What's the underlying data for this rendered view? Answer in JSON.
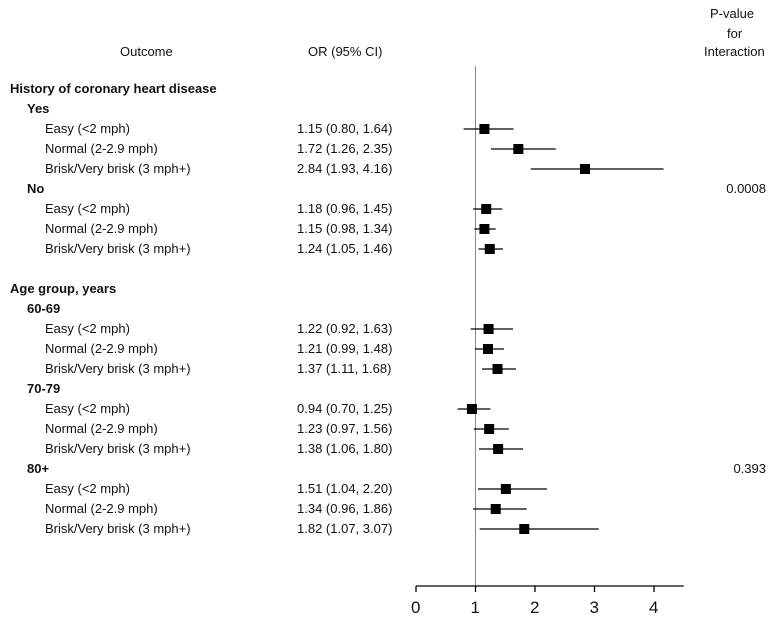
{
  "header": {
    "outcome": "Outcome",
    "or_ci": "OR (95% CI)",
    "pvalue_lines": [
      "P-value",
      "for",
      "Interaction"
    ]
  },
  "chart_data": {
    "type": "forest",
    "reference_line": 1,
    "xlim": [
      0,
      4.5
    ],
    "xticks": [
      "0",
      "1",
      "2",
      "3",
      "4"
    ],
    "groups": [
      {
        "title": "History of coronary heart disease",
        "p_value": "0.0008",
        "subgroups": [
          {
            "label": "Yes",
            "rows": [
              {
                "label": "Easy (<2 mph)",
                "ci_text": "1.15 (0.80, 1.64)",
                "or": 1.15,
                "lo": 0.8,
                "hi": 1.64
              },
              {
                "label": "Normal (2-2.9 mph)",
                "ci_text": "1.72 (1.26, 2.35)",
                "or": 1.72,
                "lo": 1.26,
                "hi": 2.35
              },
              {
                "label": "Brisk/Very brisk (3 mph+)",
                "ci_text": "2.84 (1.93, 4.16)",
                "or": 2.84,
                "lo": 1.93,
                "hi": 4.16
              }
            ]
          },
          {
            "label": "No",
            "rows": [
              {
                "label": "Easy (<2 mph)",
                "ci_text": "1.18 (0.96, 1.45)",
                "or": 1.18,
                "lo": 0.96,
                "hi": 1.45
              },
              {
                "label": "Normal (2-2.9 mph)",
                "ci_text": "1.15 (0.98, 1.34)",
                "or": 1.15,
                "lo": 0.98,
                "hi": 1.34
              },
              {
                "label": "Brisk/Very brisk (3 mph+)",
                "ci_text": "1.24 (1.05, 1.46)",
                "or": 1.24,
                "lo": 1.05,
                "hi": 1.46
              }
            ]
          }
        ]
      },
      {
        "title": "Age group, years",
        "p_value": "0.393",
        "subgroups": [
          {
            "label": "60-69",
            "rows": [
              {
                "label": "Easy (<2 mph)",
                "ci_text": "1.22 (0.92, 1.63)",
                "or": 1.22,
                "lo": 0.92,
                "hi": 1.63
              },
              {
                "label": "Normal (2-2.9 mph)",
                "ci_text": "1.21 (0.99, 1.48)",
                "or": 1.21,
                "lo": 0.99,
                "hi": 1.48
              },
              {
                "label": "Brisk/Very brisk (3 mph+)",
                "ci_text": "1.37 (1.11, 1.68)",
                "or": 1.37,
                "lo": 1.11,
                "hi": 1.68
              }
            ]
          },
          {
            "label": "70-79",
            "rows": [
              {
                "label": "Easy (<2 mph)",
                "ci_text": "0.94 (0.70, 1.25)",
                "or": 0.94,
                "lo": 0.7,
                "hi": 1.25
              },
              {
                "label": "Normal (2-2.9 mph)",
                "ci_text": "1.23 (0.97, 1.56)",
                "or": 1.23,
                "lo": 0.97,
                "hi": 1.56
              },
              {
                "label": "Brisk/Very brisk (3 mph+)",
                "ci_text": "1.38 (1.06, 1.80)",
                "or": 1.38,
                "lo": 1.06,
                "hi": 1.8
              }
            ]
          },
          {
            "label": "80+",
            "rows": [
              {
                "label": "Easy (<2 mph)",
                "ci_text": "1.51 (1.04, 2.20)",
                "or": 1.51,
                "lo": 1.04,
                "hi": 2.2
              },
              {
                "label": "Normal (2-2.9 mph)",
                "ci_text": "1.34 (0.96, 1.86)",
                "or": 1.34,
                "lo": 0.96,
                "hi": 1.86
              },
              {
                "label": "Brisk/Very brisk (3 mph+)",
                "ci_text": "1.82 (1.07, 3.07)",
                "or": 1.82,
                "lo": 1.07,
                "hi": 3.07
              }
            ]
          }
        ]
      }
    ]
  }
}
